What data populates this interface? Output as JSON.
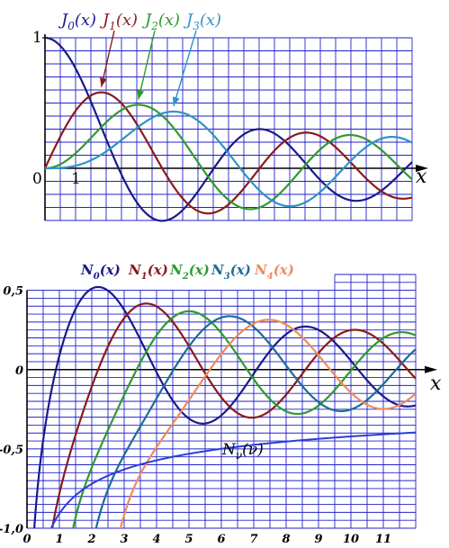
{
  "chart_data": [
    {
      "type": "line",
      "function": "bessel-first-kind",
      "grid": true,
      "xlim": [
        0,
        12
      ],
      "ylim": [
        -0.4,
        1.0
      ],
      "x_tick_labels": [
        "0",
        "1"
      ],
      "y_tick_labels": [
        "1"
      ],
      "axis_x_label": "x",
      "legend_placement": "top",
      "series": [
        {
          "name": "J0(x)",
          "legend_main": "J",
          "legend_sub": "0",
          "legend_arg": "(x)",
          "order": 0,
          "color": "#1a1a8c"
        },
        {
          "name": "J1(x)",
          "legend_main": "J",
          "legend_sub": "1",
          "legend_arg": "(x)",
          "order": 1,
          "color": "#8b1a1a"
        },
        {
          "name": "J2(x)",
          "legend_main": "J",
          "legend_sub": "2",
          "legend_arg": "(x)",
          "order": 2,
          "color": "#2e9a2e"
        },
        {
          "name": "J3(x)",
          "legend_main": "J",
          "legend_sub": "3",
          "legend_arg": "(x)",
          "order": 3,
          "color": "#2e93c8"
        }
      ]
    },
    {
      "type": "line",
      "function": "bessel-second-kind",
      "grid": true,
      "xlim": [
        0,
        12
      ],
      "ylim": [
        -1.0,
        0.6
      ],
      "x_tick_labels": [
        "0",
        "1",
        "2",
        "3",
        "4",
        "5",
        "6",
        "7",
        "8",
        "9",
        "10",
        "11"
      ],
      "y_tick_labels": [
        "0,5",
        "0",
        "-0,5",
        "-1,0"
      ],
      "axis_x_label": "x",
      "legend_placement": "top",
      "series": [
        {
          "name": "N0(x)",
          "legend_main": "N",
          "legend_sub": "0",
          "legend_arg": "(x)",
          "order": 0,
          "color": "#1a1a8c"
        },
        {
          "name": "N1(x)",
          "legend_main": "N",
          "legend_sub": "1",
          "legend_arg": "(x)",
          "order": 1,
          "color": "#8b1a1a"
        },
        {
          "name": "N2(x)",
          "legend_main": "N",
          "legend_sub": "2",
          "legend_arg": "(x)",
          "order": 2,
          "color": "#2e9a2e"
        },
        {
          "name": "N3(x)",
          "legend_main": "N",
          "legend_sub": "3",
          "legend_arg": "(x)",
          "order": 3,
          "color": "#1d6a9c"
        },
        {
          "name": "N4(x)",
          "legend_main": "N",
          "legend_sub": "4",
          "legend_arg": "(x)",
          "order": 4,
          "color": "#f08a5c"
        }
      ],
      "envelope": {
        "label_main": "N",
        "label_sub": "ν",
        "label_arg": "(ν)",
        "color": "#2a3fd6",
        "nu_range": [
          0,
          40
        ]
      }
    }
  ]
}
